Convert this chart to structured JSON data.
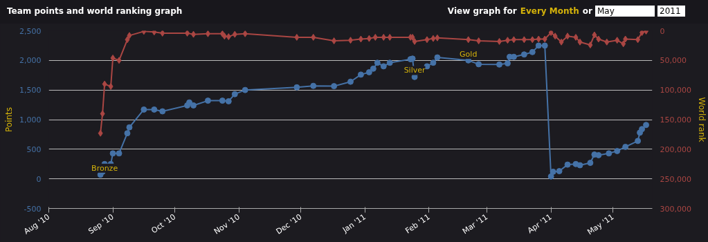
{
  "chart_data": {
    "type": "line",
    "title": "Team points and world ranking graph",
    "annotations": [
      "View graph for",
      "Every Month",
      "or",
      "May",
      "2011",
      {
        "text": "Bronze",
        "x": "2010-08-28",
        "y": 180
      },
      {
        "text": "Silver",
        "x": "2011-01-25",
        "y": 1830
      },
      {
        "text": "Gold",
        "x": "2011-02-20",
        "y": 2100
      }
    ],
    "ylabel": "Points",
    "y2label": "World rank",
    "xlim": [
      "2010-08-01",
      "2011-05-20"
    ],
    "xticks": [
      {
        "value": "2010-08-01",
        "label": "Aug '10"
      },
      {
        "value": "2010-09-01",
        "label": "Sep '10"
      },
      {
        "value": "2010-10-01",
        "label": "Oct '10"
      },
      {
        "value": "2010-11-01",
        "label": "Nov '10"
      },
      {
        "value": "2010-12-01",
        "label": "Dec '10"
      },
      {
        "value": "2011-01-01",
        "label": "Jan '11"
      },
      {
        "value": "2011-02-01",
        "label": "Feb '11"
      },
      {
        "value": "2011-03-01",
        "label": "Mar '11"
      },
      {
        "value": "2011-04-01",
        "label": "Apr '11"
      },
      {
        "value": "2011-05-01",
        "label": "May '11"
      }
    ],
    "ylim": [
      -500,
      2500
    ],
    "yticks": [
      {
        "value": -500,
        "label": "-500"
      },
      0,
      500,
      {
        "value": 1000,
        "label": "1,000"
      },
      {
        "value": 1500,
        "label": "1,500"
      },
      {
        "value": 2000,
        "label": "2,000"
      },
      {
        "value": 2500,
        "label": "2,500"
      }
    ],
    "y2lim": [
      300000,
      0
    ],
    "y2ticks": [
      {
        "value": 300000,
        "label": "300,000"
      },
      {
        "value": 250000,
        "label": "250,000"
      },
      {
        "value": 200000,
        "label": "200,000"
      },
      {
        "value": 150000,
        "label": "150,000"
      },
      {
        "value": 100000,
        "label": "100,000"
      },
      {
        "value": 50000,
        "label": "50,000"
      },
      0
    ],
    "grid": "y",
    "line_style": "solid",
    "series": [
      {
        "color": "#4572a7",
        "marker": "circle",
        "x": [
          "2010-08-26",
          "2010-08-27",
          "2010-08-28",
          "2010-08-31",
          "2010-09-01",
          "2010-09-04",
          "2010-09-08",
          "2010-09-09",
          "2010-09-16",
          "2010-09-21",
          "2010-09-25",
          "2010-10-07",
          "2010-10-08",
          "2010-10-10",
          "2010-10-17",
          "2010-10-24",
          "2010-10-27",
          "2010-10-30",
          "2010-11-04",
          "2010-11-29",
          "2010-12-07",
          "2010-12-17",
          "2010-12-25",
          "2010-12-30",
          "2011-01-03",
          "2011-01-05",
          "2011-01-07",
          "2011-01-10",
          "2011-01-13",
          "2011-01-23",
          "2011-01-24",
          "2011-01-25",
          "2011-01-31",
          "2011-02-03",
          "2011-02-05",
          "2011-02-20",
          "2011-02-25",
          "2011-03-07",
          "2011-03-11",
          "2011-03-12",
          "2011-03-14",
          "2011-03-19",
          "2011-03-23",
          "2011-03-26",
          "2011-03-29",
          "2011-04-01",
          "2011-04-02",
          "2011-04-05",
          "2011-04-09",
          "2011-04-13",
          "2011-04-15",
          "2011-04-20",
          "2011-04-22",
          "2011-04-24",
          "2011-04-29",
          "2011-05-03",
          "2011-05-07",
          "2011-05-13",
          "2011-05-14",
          "2011-05-15",
          "2011-05-17"
        ],
        "values": [
          70,
          120,
          250,
          250,
          430,
          430,
          770,
          870,
          1170,
          1170,
          1140,
          1240,
          1290,
          1240,
          1320,
          1320,
          1310,
          1430,
          1500,
          1545,
          1570,
          1565,
          1640,
          1760,
          1800,
          1860,
          1960,
          1900,
          1960,
          2020,
          2030,
          1720,
          1900,
          1960,
          2050,
          2000,
          1935,
          1930,
          1950,
          2060,
          2060,
          2100,
          2140,
          2250,
          2250,
          40,
          120,
          130,
          240,
          250,
          230,
          270,
          410,
          400,
          430,
          470,
          540,
          640,
          780,
          840,
          910
        ]
      },
      {
        "color": "#aa4643",
        "marker": "diamond",
        "axis": "y2",
        "x": [
          "2010-08-26",
          "2010-08-27",
          "2010-08-28",
          "2010-08-31",
          "2010-09-01",
          "2010-09-04",
          "2010-09-08",
          "2010-09-09",
          "2010-09-16",
          "2010-09-21",
          "2010-09-25",
          "2010-10-07",
          "2010-10-10",
          "2010-10-17",
          "2010-10-24",
          "2010-10-25",
          "2010-10-27",
          "2010-10-30",
          "2010-11-04",
          "2010-11-29",
          "2010-12-07",
          "2010-12-17",
          "2010-12-25",
          "2010-12-30",
          "2011-01-03",
          "2011-01-06",
          "2011-01-10",
          "2011-01-13",
          "2011-01-23",
          "2011-01-24",
          "2011-01-25",
          "2011-01-31",
          "2011-02-03",
          "2011-02-05",
          "2011-02-20",
          "2011-02-25",
          "2011-03-07",
          "2011-03-11",
          "2011-03-14",
          "2011-03-19",
          "2011-03-23",
          "2011-03-26",
          "2011-03-29",
          "2011-04-01",
          "2011-04-03",
          "2011-04-06",
          "2011-04-09",
          "2011-04-13",
          "2011-04-15",
          "2011-04-20",
          "2011-04-22",
          "2011-04-24",
          "2011-04-28",
          "2011-05-03",
          "2011-05-06",
          "2011-05-07",
          "2011-05-13",
          "2011-05-15",
          "2011-05-17"
        ],
        "values": [
          173000,
          140000,
          90000,
          94000,
          46000,
          50000,
          15000,
          8000,
          1000,
          2000,
          4000,
          4000,
          6000,
          5000,
          5000,
          9000,
          10000,
          6000,
          5000,
          11000,
          11000,
          17000,
          16000,
          14000,
          13000,
          11000,
          11000,
          11000,
          11000,
          11000,
          18000,
          15000,
          13000,
          12000,
          15000,
          17000,
          18000,
          16000,
          15000,
          15000,
          15000,
          14000,
          14000,
          3000,
          9000,
          19000,
          9000,
          11000,
          19000,
          24000,
          7000,
          14000,
          19000,
          16000,
          22000,
          14000,
          15000,
          3000,
          500
        ]
      }
    ]
  }
}
